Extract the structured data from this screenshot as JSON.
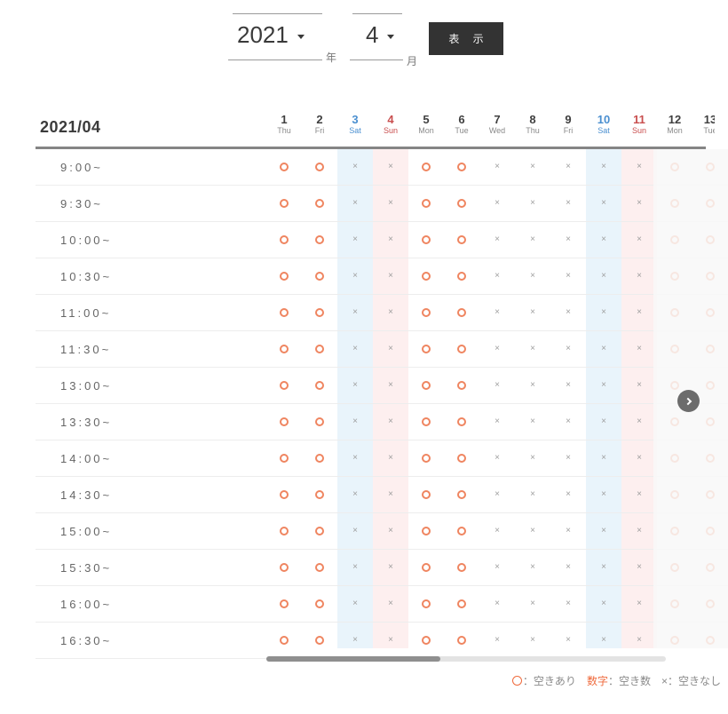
{
  "controls": {
    "year": {
      "value": "2021",
      "suffix": "年"
    },
    "month": {
      "value": "4",
      "suffix": "月"
    },
    "display_button": "表 示"
  },
  "calendar": {
    "title": "2021/04",
    "days": [
      {
        "num": "1",
        "dow": "Thu",
        "type": "weekday"
      },
      {
        "num": "2",
        "dow": "Fri",
        "type": "weekday"
      },
      {
        "num": "3",
        "dow": "Sat",
        "type": "sat"
      },
      {
        "num": "4",
        "dow": "Sun",
        "type": "sun"
      },
      {
        "num": "5",
        "dow": "Mon",
        "type": "weekday"
      },
      {
        "num": "6",
        "dow": "Tue",
        "type": "weekday"
      },
      {
        "num": "7",
        "dow": "Wed",
        "type": "weekday"
      },
      {
        "num": "8",
        "dow": "Thu",
        "type": "weekday"
      },
      {
        "num": "9",
        "dow": "Fri",
        "type": "weekday"
      },
      {
        "num": "10",
        "dow": "Sat",
        "type": "sat"
      },
      {
        "num": "11",
        "dow": "Sun",
        "type": "sun"
      },
      {
        "num": "12",
        "dow": "Mon",
        "type": "weekday"
      },
      {
        "num": "13",
        "dow": "Tue",
        "type": "weekday"
      }
    ],
    "rows": [
      {
        "time": "9:00~",
        "cells": [
          "o",
          "o",
          "x",
          "x",
          "o",
          "o",
          "x",
          "x",
          "x",
          "x",
          "x",
          "o",
          "o"
        ]
      },
      {
        "time": "9:30~",
        "cells": [
          "o",
          "o",
          "x",
          "x",
          "o",
          "o",
          "x",
          "x",
          "x",
          "x",
          "x",
          "o",
          "o"
        ]
      },
      {
        "time": "10:00~",
        "cells": [
          "o",
          "o",
          "x",
          "x",
          "o",
          "o",
          "x",
          "x",
          "x",
          "x",
          "x",
          "o",
          "o"
        ]
      },
      {
        "time": "10:30~",
        "cells": [
          "o",
          "o",
          "x",
          "x",
          "o",
          "o",
          "x",
          "x",
          "x",
          "x",
          "x",
          "o",
          "o"
        ]
      },
      {
        "time": "11:00~",
        "cells": [
          "o",
          "o",
          "x",
          "x",
          "o",
          "o",
          "x",
          "x",
          "x",
          "x",
          "x",
          "o",
          "o"
        ]
      },
      {
        "time": "11:30~",
        "cells": [
          "o",
          "o",
          "x",
          "x",
          "o",
          "o",
          "x",
          "x",
          "x",
          "x",
          "x",
          "o",
          "o"
        ]
      },
      {
        "time": "13:00~",
        "cells": [
          "o",
          "o",
          "x",
          "x",
          "o",
          "o",
          "x",
          "x",
          "x",
          "x",
          "x",
          "o",
          "o"
        ]
      },
      {
        "time": "13:30~",
        "cells": [
          "o",
          "o",
          "x",
          "x",
          "o",
          "o",
          "x",
          "x",
          "x",
          "x",
          "x",
          "o",
          "o"
        ]
      },
      {
        "time": "14:00~",
        "cells": [
          "o",
          "o",
          "x",
          "x",
          "o",
          "o",
          "x",
          "x",
          "x",
          "x",
          "x",
          "o",
          "o"
        ]
      },
      {
        "time": "14:30~",
        "cells": [
          "o",
          "o",
          "x",
          "x",
          "o",
          "o",
          "x",
          "x",
          "x",
          "x",
          "x",
          "o",
          "o"
        ]
      },
      {
        "time": "15:00~",
        "cells": [
          "o",
          "o",
          "x",
          "x",
          "o",
          "o",
          "x",
          "x",
          "x",
          "x",
          "x",
          "o",
          "o"
        ]
      },
      {
        "time": "15:30~",
        "cells": [
          "o",
          "o",
          "x",
          "x",
          "o",
          "o",
          "x",
          "x",
          "x",
          "x",
          "x",
          "o",
          "o"
        ]
      },
      {
        "time": "16:00~",
        "cells": [
          "o",
          "o",
          "x",
          "x",
          "o",
          "o",
          "x",
          "x",
          "x",
          "x",
          "x",
          "o",
          "o"
        ]
      },
      {
        "time": "16:30~",
        "cells": [
          "o",
          "o",
          "x",
          "x",
          "o",
          "o",
          "x",
          "x",
          "x",
          "x",
          "x",
          "o",
          "o"
        ]
      }
    ],
    "symbols": {
      "available": "○",
      "unavailable": "×"
    }
  },
  "legend": {
    "items": [
      {
        "symbol": "○",
        "text": "：空きあり",
        "accent": true,
        "ring": true
      },
      {
        "symbol": "数字",
        "text": "：空き数",
        "accent": true,
        "ring": false
      },
      {
        "symbol": "×",
        "text": "：空きなし",
        "accent": false,
        "ring": false
      }
    ]
  },
  "colors": {
    "accent_orange": "#ef6a3c",
    "ring_orange": "#ef8560",
    "sat_blue": "#4a8fd0",
    "sun_red": "#c94f4f",
    "sat_bg": "#e9f4fb",
    "sun_bg": "#fdefef",
    "button_bg": "#333333"
  }
}
